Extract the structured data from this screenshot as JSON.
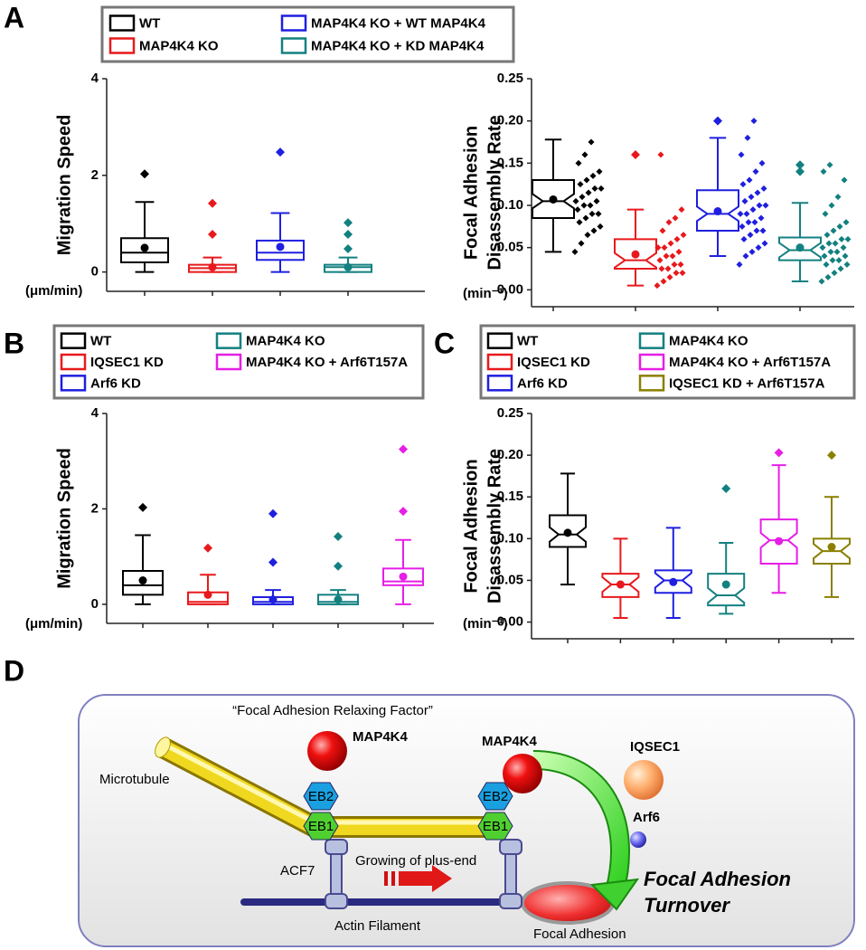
{
  "panel_labels": [
    "A",
    "B",
    "C",
    "D"
  ],
  "chart_data": [
    {
      "type": "box",
      "notch": false,
      "legend": "top",
      "ylabel": [
        "Migration Speed"
      ],
      "yunit": "(μm/min)",
      "ylim": [
        -0.4,
        4
      ],
      "yticks": [
        0,
        2,
        4
      ],
      "series": [
        {
          "name": "WT",
          "color": "#000000",
          "low": 0,
          "q1": 0.2,
          "median": 0.4,
          "q3": 0.7,
          "high": 1.45,
          "mean": 0.5,
          "outliers": [
            2.03
          ]
        },
        {
          "name": "MAP4K4 KO",
          "color": "#e8191c",
          "low": 0,
          "q1": 0,
          "median": 0.08,
          "q3": 0.15,
          "high": 0.3,
          "mean": 0.1,
          "outliers": [
            0.78,
            1.42
          ]
        },
        {
          "name": "MAP4K4 KO + WT MAP4K4",
          "color": "#1f1fe0",
          "low": 0,
          "q1": 0.25,
          "median": 0.4,
          "q3": 0.65,
          "high": 1.22,
          "mean": 0.52,
          "outliers": [
            2.48
          ]
        },
        {
          "name": "MAP4K4 KO + KD MAP4K4",
          "color": "#138080",
          "low": 0,
          "q1": 0,
          "median": 0.1,
          "q3": 0.15,
          "high": 0.3,
          "mean": 0.1,
          "outliers": [
            0.48,
            0.78,
            1.02
          ]
        }
      ]
    },
    {
      "type": "box",
      "notch": true,
      "ylabel": [
        "Focal Adhesion",
        "Disassembly Rate"
      ],
      "yunit": "(min⁻¹)",
      "ylim": [
        -0.02,
        0.25
      ],
      "yticks": [
        {
          "value": 0,
          "label": "0.00"
        },
        0.05,
        {
          "value": 0.1,
          "label": "0.10"
        },
        0.15,
        {
          "value": 0.2,
          "label": "0.20"
        },
        0.25
      ],
      "series": [
        {
          "color": "#000000",
          "low": 0.045,
          "q1": 0.085,
          "median": 0.105,
          "q3": 0.13,
          "high": 0.178,
          "mean": 0.107,
          "outliers": [],
          "points": [
            0.045,
            0.055,
            0.065,
            0.07,
            0.075,
            0.08,
            0.085,
            0.09,
            0.09,
            0.095,
            0.1,
            0.1,
            0.105,
            0.105,
            0.11,
            0.115,
            0.12,
            0.12,
            0.125,
            0.13,
            0.135,
            0.14,
            0.15,
            0.16,
            0.175
          ]
        },
        {
          "color": "#e8191c",
          "low": 0.005,
          "q1": 0.025,
          "median": 0.035,
          "q3": 0.06,
          "high": 0.095,
          "mean": 0.042,
          "outliers": [
            0.16
          ],
          "points": [
            0.005,
            0.01,
            0.015,
            0.02,
            0.02,
            0.025,
            0.025,
            0.03,
            0.03,
            0.035,
            0.04,
            0.04,
            0.045,
            0.05,
            0.05,
            0.055,
            0.06,
            0.065,
            0.07,
            0.08,
            0.085,
            0.095,
            0.16
          ]
        },
        {
          "color": "#1f1fe0",
          "low": 0.04,
          "q1": 0.07,
          "median": 0.09,
          "q3": 0.118,
          "high": 0.18,
          "mean": 0.093,
          "outliers": [
            0.2
          ],
          "points": [
            0.03,
            0.04,
            0.045,
            0.05,
            0.055,
            0.06,
            0.065,
            0.07,
            0.07,
            0.075,
            0.08,
            0.08,
            0.085,
            0.09,
            0.09,
            0.095,
            0.1,
            0.1,
            0.105,
            0.11,
            0.115,
            0.12,
            0.125,
            0.13,
            0.14,
            0.15,
            0.16,
            0.18,
            0.2
          ]
        },
        {
          "color": "#138080",
          "low": 0.01,
          "q1": 0.035,
          "median": 0.047,
          "q3": 0.062,
          "high": 0.103,
          "mean": 0.05,
          "outliers": [
            0.14,
            0.148
          ],
          "points": [
            0.01,
            0.015,
            0.02,
            0.025,
            0.03,
            0.03,
            0.035,
            0.035,
            0.04,
            0.04,
            0.045,
            0.045,
            0.05,
            0.05,
            0.055,
            0.055,
            0.06,
            0.06,
            0.065,
            0.07,
            0.075,
            0.08,
            0.09,
            0.1,
            0.11,
            0.13,
            0.14,
            0.148
          ]
        }
      ]
    },
    {
      "type": "box",
      "notch": false,
      "legend": "top",
      "ylabel": [
        "Migration Speed"
      ],
      "yunit": "(μm/min)",
      "ylim": [
        -0.4,
        4
      ],
      "yticks": [
        0,
        2,
        4
      ],
      "series": [
        {
          "name": "WT",
          "color": "#000000",
          "low": 0,
          "q1": 0.2,
          "median": 0.4,
          "q3": 0.7,
          "high": 1.45,
          "mean": 0.5,
          "outliers": [
            2.03
          ]
        },
        {
          "name": "IQSEC1 KD",
          "color": "#e8191c",
          "low": 0,
          "q1": 0,
          "median": 0.05,
          "q3": 0.25,
          "high": 0.62,
          "mean": 0.2,
          "outliers": [
            1.18
          ]
        },
        {
          "name": "Arf6 KD",
          "color": "#1f1fe0",
          "low": 0,
          "q1": 0,
          "median": 0.05,
          "q3": 0.15,
          "high": 0.3,
          "mean": 0.1,
          "outliers": [
            0.88,
            1.9
          ]
        },
        {
          "name": "MAP4K4 KO",
          "color": "#138080",
          "low": 0,
          "q1": 0,
          "median": 0.05,
          "q3": 0.2,
          "high": 0.3,
          "mean": 0.1,
          "outliers": [
            0.8,
            1.42
          ]
        },
        {
          "name": "MAP4K4 KO + Arf6T157A",
          "color": "#e61ee6",
          "low": 0,
          "q1": 0.4,
          "median": 0.48,
          "q3": 0.75,
          "high": 1.35,
          "mean": 0.58,
          "outliers": [
            1.95,
            3.25
          ]
        }
      ]
    },
    {
      "type": "box",
      "notch": true,
      "legend": "top",
      "ylabel": [
        "Focal Adhesion",
        "Disassembly Rate"
      ],
      "yunit": "(min⁻¹)",
      "ylim": [
        -0.02,
        0.25
      ],
      "yticks": [
        {
          "value": 0,
          "label": "0.00"
        },
        0.05,
        {
          "value": 0.1,
          "label": "0.10"
        },
        0.15,
        {
          "value": 0.2,
          "label": "0.20"
        },
        0.25
      ],
      "series": [
        {
          "name": "WT",
          "color": "#000000",
          "low": 0.045,
          "q1": 0.09,
          "median": 0.105,
          "q3": 0.128,
          "high": 0.178,
          "mean": 0.107,
          "outliers": []
        },
        {
          "name": "IQSEC1 KD",
          "color": "#e8191c",
          "low": 0.005,
          "q1": 0.03,
          "median": 0.045,
          "q3": 0.058,
          "high": 0.1,
          "mean": 0.045,
          "outliers": []
        },
        {
          "name": "Arf6 KD",
          "color": "#1f1fe0",
          "low": 0.005,
          "q1": 0.035,
          "median": 0.05,
          "q3": 0.062,
          "high": 0.113,
          "mean": 0.048,
          "outliers": []
        },
        {
          "name": "MAP4K4 KO",
          "color": "#138080",
          "low": 0.01,
          "q1": 0.02,
          "median": 0.032,
          "q3": 0.058,
          "high": 0.095,
          "mean": 0.045,
          "outliers": [
            0.16
          ]
        },
        {
          "name": "MAP4K4 KO + Arf6T157A",
          "color": "#e61ee6",
          "low": 0.035,
          "q1": 0.07,
          "median": 0.098,
          "q3": 0.123,
          "high": 0.188,
          "mean": 0.097,
          "outliers": [
            0.203
          ]
        },
        {
          "name": "IQSEC1 KD + Arf6T157A",
          "color": "#8b8000",
          "low": 0.03,
          "q1": 0.07,
          "median": 0.085,
          "q3": 0.1,
          "high": 0.15,
          "mean": 0.09,
          "outliers": [
            0.2
          ]
        }
      ]
    }
  ],
  "diagram": {
    "relaxing_factor": "“Focal Adhesion Relaxing Factor”",
    "map4k4_top": "MAP4K4",
    "map4k4_right": "MAP4K4",
    "iqsec1": "IQSEC1",
    "arf6": "Arf6",
    "microtubule": "Microtubule",
    "eb2_left": "EB2",
    "eb1_left": "EB1",
    "eb2_right": "EB2",
    "eb1_right": "EB1",
    "acf7": "ACF7",
    "growing": "Growing of plus-end",
    "actin": "Actin Filament",
    "focal_adhesion": "Focal Adhesion",
    "turnover": [
      "Focal Adhesion",
      "Turnover"
    ]
  }
}
